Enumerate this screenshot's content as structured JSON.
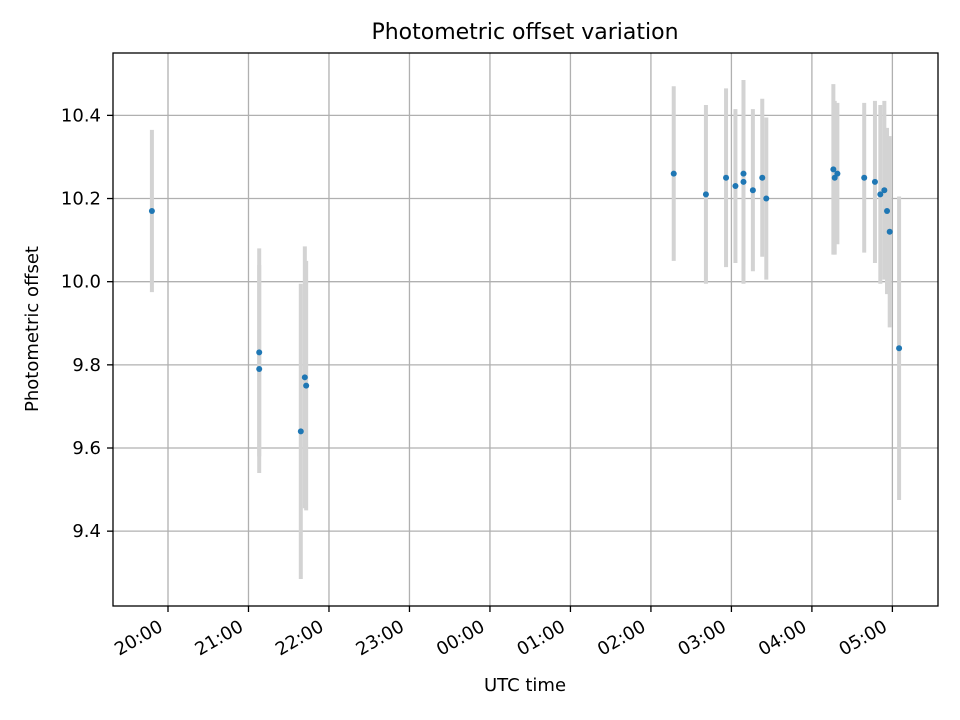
{
  "chart_data": {
    "type": "scatter",
    "title": "Photometric offset variation",
    "xlabel": "UTC time",
    "ylabel": "Photometric offset",
    "grid": true,
    "x_ticks": [
      "20:00",
      "21:00",
      "22:00",
      "23:00",
      "00:00",
      "01:00",
      "02:00",
      "03:00",
      "04:00",
      "05:00"
    ],
    "y_ticks": [
      "9.4",
      "9.6",
      "9.8",
      "10.0",
      "10.2",
      "10.4"
    ],
    "xlim": [
      "19:19",
      "05:34"
    ],
    "ylim": [
      9.22,
      10.55
    ],
    "colors": {
      "points": "#1f77b4",
      "errorbars": "#d3d3d3",
      "grid": "#b0b0b0"
    },
    "series": [
      {
        "points": [
          {
            "x": "19:48",
            "y": 10.17,
            "err": 0.195
          },
          {
            "x": "21:08",
            "y": 9.83,
            "err": 0.25
          },
          {
            "x": "21:08",
            "y": 9.79,
            "err": 0.25
          },
          {
            "x": "21:39",
            "y": 9.64,
            "err": 0.355
          },
          {
            "x": "21:42",
            "y": 9.77,
            "err": 0.315
          },
          {
            "x": "21:43",
            "y": 9.75,
            "err": 0.3
          },
          {
            "x": "02:17",
            "y": 10.26,
            "err": 0.21
          },
          {
            "x": "02:41",
            "y": 10.21,
            "err": 0.215
          },
          {
            "x": "02:56",
            "y": 10.25,
            "err": 0.215
          },
          {
            "x": "03:03",
            "y": 10.23,
            "err": 0.185
          },
          {
            "x": "03:09",
            "y": 10.24,
            "err": 0.245
          },
          {
            "x": "03:09",
            "y": 10.26,
            "err": 0.22
          },
          {
            "x": "03:16",
            "y": 10.22,
            "err": 0.195
          },
          {
            "x": "03:23",
            "y": 10.25,
            "err": 0.19
          },
          {
            "x": "03:26",
            "y": 10.2,
            "err": 0.195
          },
          {
            "x": "04:16",
            "y": 10.27,
            "err": 0.205
          },
          {
            "x": "04:17",
            "y": 10.25,
            "err": 0.185
          },
          {
            "x": "04:19",
            "y": 10.26,
            "err": 0.17
          },
          {
            "x": "04:39",
            "y": 10.25,
            "err": 0.18
          },
          {
            "x": "04:47",
            "y": 10.24,
            "err": 0.195
          },
          {
            "x": "04:51",
            "y": 10.21,
            "err": 0.215
          },
          {
            "x": "04:54",
            "y": 10.22,
            "err": 0.215
          },
          {
            "x": "04:56",
            "y": 10.17,
            "err": 0.2
          },
          {
            "x": "04:58",
            "y": 10.12,
            "err": 0.23
          },
          {
            "x": "05:05",
            "y": 9.84,
            "err": 0.365
          }
        ]
      }
    ]
  }
}
